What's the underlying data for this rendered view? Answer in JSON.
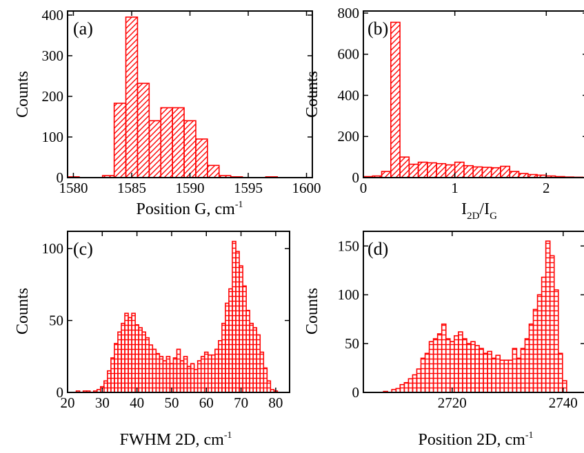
{
  "chart_data": [
    {
      "id": "a",
      "type": "bar",
      "panel_label": "(a)",
      "xlabel": "Position G, cm",
      "xlabel_sup": "-1",
      "ylabel": "Counts",
      "xlim": [
        1579.5,
        1600.5
      ],
      "ylim": [
        0,
        410
      ],
      "xticks": [
        1580,
        1585,
        1590,
        1595,
        1600
      ],
      "yticks": [
        0,
        100,
        200,
        300,
        400
      ],
      "bin_width": 1,
      "x": [
        1580,
        1581,
        1582,
        1583,
        1584,
        1585,
        1586,
        1587,
        1588,
        1589,
        1590,
        1591,
        1592,
        1593,
        1594,
        1595,
        1596,
        1597,
        1598,
        1599
      ],
      "values": [
        2,
        0,
        0,
        5,
        183,
        395,
        232,
        140,
        172,
        172,
        140,
        95,
        30,
        5,
        2,
        0,
        0,
        2,
        0,
        0
      ],
      "color": "#ff0000",
      "hatch": "diagonal"
    },
    {
      "id": "b",
      "type": "bar",
      "panel_label": "(b)",
      "xlabel": "I",
      "xlabel_sub1": "2D",
      "xlabel_mid": "/I",
      "xlabel_sub2": "G",
      "ylabel": "Counts",
      "xlim": [
        0,
        2.45
      ],
      "ylim": [
        0,
        810
      ],
      "xticks": [
        0,
        1,
        2
      ],
      "yticks": [
        0,
        200,
        400,
        600,
        800
      ],
      "bin_width": 0.1,
      "x": [
        0.05,
        0.15,
        0.25,
        0.35,
        0.45,
        0.55,
        0.65,
        0.75,
        0.85,
        0.95,
        1.05,
        1.15,
        1.25,
        1.35,
        1.45,
        1.55,
        1.65,
        1.75,
        1.85,
        1.95,
        2.05,
        2.15,
        2.25,
        2.35
      ],
      "values": [
        5,
        8,
        30,
        755,
        100,
        65,
        75,
        72,
        68,
        62,
        75,
        58,
        52,
        50,
        48,
        55,
        30,
        20,
        15,
        12,
        8,
        5,
        3,
        2
      ],
      "color": "#ff0000",
      "hatch": "diagonal"
    },
    {
      "id": "c",
      "type": "bar",
      "panel_label": "(c)",
      "xlabel": "FWHM 2D, cm",
      "xlabel_sup": "-1",
      "ylabel": "Counts",
      "xlim": [
        20,
        84
      ],
      "ylim": [
        0,
        112
      ],
      "xticks": [
        20,
        30,
        40,
        50,
        60,
        70,
        80
      ],
      "yticks": [
        0,
        50,
        100
      ],
      "bin_width": 1,
      "x": [
        23,
        24,
        25,
        26,
        27,
        28,
        29,
        30,
        31,
        32,
        33,
        34,
        35,
        36,
        37,
        38,
        39,
        40,
        41,
        42,
        43,
        44,
        45,
        46,
        47,
        48,
        49,
        50,
        51,
        52,
        53,
        54,
        55,
        56,
        57,
        58,
        59,
        60,
        61,
        62,
        63,
        64,
        65,
        66,
        67,
        68,
        69,
        70,
        71,
        72,
        73,
        74,
        75,
        76,
        77,
        78,
        79,
        80
      ],
      "values": [
        1,
        0,
        1,
        1,
        0,
        1,
        2,
        4,
        8,
        15,
        24,
        34,
        42,
        48,
        55,
        52,
        55,
        47,
        45,
        42,
        38,
        33,
        30,
        27,
        25,
        22,
        25,
        20,
        24,
        30,
        22,
        25,
        18,
        20,
        16,
        22,
        25,
        28,
        26,
        26,
        30,
        36,
        48,
        62,
        72,
        105,
        98,
        88,
        74,
        57,
        48,
        45,
        40,
        28,
        17,
        8,
        2,
        1
      ],
      "color": "#ff0000",
      "hatch": "horizontal"
    },
    {
      "id": "d",
      "type": "bar",
      "panel_label": "(d)",
      "xlabel": "Position 2D, cm",
      "xlabel_sup": "-1",
      "ylabel": "Counts",
      "xlim": [
        2704,
        2744
      ],
      "ylim": [
        0,
        165
      ],
      "xticks": [
        2720,
        2740
      ],
      "yticks": [
        0,
        50,
        100,
        150
      ],
      "bin_width": 0.75,
      "x": [
        2708.0,
        2708.75,
        2709.5,
        2710.25,
        2711.0,
        2711.75,
        2712.5,
        2713.25,
        2714.0,
        2714.75,
        2715.5,
        2716.25,
        2717.0,
        2717.75,
        2718.5,
        2719.25,
        2720.0,
        2720.75,
        2721.5,
        2722.25,
        2723.0,
        2723.75,
        2724.5,
        2725.25,
        2726.0,
        2726.75,
        2727.5,
        2728.25,
        2729.0,
        2729.75,
        2730.5,
        2731.25,
        2732.0,
        2732.75,
        2733.5,
        2734.25,
        2735.0,
        2735.75,
        2736.5,
        2737.25,
        2738.0,
        2738.75,
        2739.5,
        2740.25
      ],
      "values": [
        1,
        0,
        3,
        4,
        8,
        10,
        14,
        18,
        24,
        35,
        40,
        52,
        55,
        60,
        70,
        55,
        52,
        58,
        62,
        55,
        50,
        52,
        48,
        45,
        40,
        42,
        35,
        38,
        33,
        33,
        33,
        45,
        35,
        45,
        55,
        70,
        85,
        100,
        118,
        155,
        140,
        105,
        40,
        12
      ],
      "color": "#ff0000",
      "hatch": "horizontal"
    }
  ]
}
